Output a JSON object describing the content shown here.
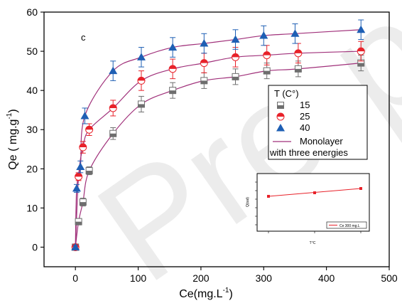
{
  "chart_data": {
    "type": "scatter",
    "panel_label": "c",
    "xlabel": "Ce(mg.L",
    "xlabel_sup": "-1",
    "xlabel_tail": ")",
    "ylabel": "Qe ( mg.g",
    "ylabel_sup": "-1",
    "ylabel_tail": ")",
    "xlim": [
      -50,
      500
    ],
    "ylim": [
      -5,
      60
    ],
    "xticks": [
      0,
      100,
      200,
      300,
      400,
      500
    ],
    "yticks": [
      0,
      10,
      20,
      30,
      40,
      50,
      60
    ],
    "legend_title": "T (C°)",
    "series": [
      {
        "name": "15",
        "marker": "square-half",
        "color": "#6e6e6e",
        "x": [
          0,
          5,
          12,
          22,
          60,
          105,
          155,
          205,
          255,
          305,
          355,
          455
        ],
        "y": [
          0,
          6.5,
          11.5,
          19.5,
          29,
          36.5,
          40,
          42.5,
          43.5,
          45,
          45.5,
          47
        ],
        "err": [
          0.5,
          0.8,
          1,
          1,
          1.5,
          2,
          2,
          2,
          2,
          2,
          2,
          2
        ]
      },
      {
        "name": "25",
        "marker": "circle-half",
        "color": "#e8222a",
        "x": [
          0,
          5,
          12,
          22,
          60,
          105,
          155,
          205,
          255,
          305,
          355,
          455
        ],
        "y": [
          0,
          18,
          25.5,
          30,
          35.5,
          42.5,
          45.5,
          47,
          48.5,
          49,
          49.5,
          50
        ],
        "err": [
          0.5,
          1,
          1.5,
          1.5,
          2,
          2.5,
          2.5,
          2.5,
          2.5,
          2.5,
          2.5,
          2.5
        ]
      },
      {
        "name": "40",
        "marker": "triangle",
        "color": "#1e5fb4",
        "x": [
          0,
          2,
          8,
          15,
          60,
          105,
          155,
          205,
          255,
          300,
          350,
          455
        ],
        "y": [
          0,
          15,
          20.5,
          33.5,
          45,
          48.5,
          51,
          52,
          53,
          54,
          54.5,
          55.5
        ],
        "err": [
          0.5,
          1,
          1.5,
          2,
          2.5,
          2.5,
          2.5,
          2.5,
          2.5,
          2.5,
          2.5,
          2.5
        ]
      }
    ],
    "fit_legend_1": "Monolayer",
    "fit_legend_2": "with three energies",
    "fit_color": "#a0307a",
    "inset_legend": "Ce 300 mg.L",
    "inset_xlabel": "T°C",
    "inset_ylabel": "Q(sat)",
    "inset_color": "#e8222a",
    "watermark": "Pre-p"
  }
}
